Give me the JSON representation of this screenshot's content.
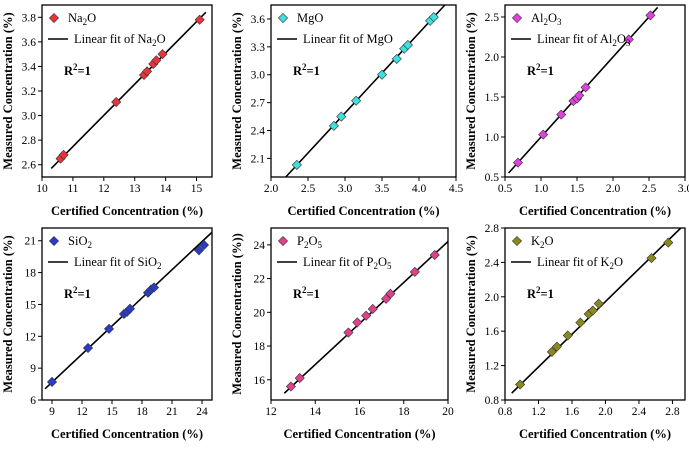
{
  "figure": {
    "xlabel": "Certified Concentration (%)",
    "ylabel": "Measured Concentration (%)"
  },
  "chart_data": [
    {
      "type": "scatter",
      "oxide": "Na2O",
      "legend_marker": "Na2O",
      "legend_fit": "Linear fit of Na2O",
      "r2": "R2=1",
      "color": "#e8333a",
      "xlabel": "Certified Concentration (%)",
      "ylabel": "Measured Concentration (%)",
      "xlim": [
        10,
        15.5
      ],
      "ylim": [
        2.5,
        3.9
      ],
      "xticks": [
        10,
        11,
        12,
        13,
        14,
        15
      ],
      "xtick_labels": [
        "10",
        "11",
        "12",
        "13",
        "14",
        "15"
      ],
      "yticks": [
        2.6,
        2.8,
        3.0,
        3.2,
        3.4,
        3.6,
        3.8
      ],
      "ytick_labels": [
        "2.6",
        "2.8",
        "3.0",
        "3.2",
        "3.4",
        "3.6",
        "3.8"
      ],
      "points": [
        [
          10.6,
          2.65
        ],
        [
          10.7,
          2.68
        ],
        [
          12.4,
          3.11
        ],
        [
          13.3,
          3.33
        ],
        [
          13.4,
          3.36
        ],
        [
          13.6,
          3.42
        ],
        [
          13.7,
          3.45
        ],
        [
          13.9,
          3.5
        ],
        [
          15.1,
          3.78
        ]
      ],
      "fit": [
        [
          10.3,
          2.57
        ],
        [
          15.3,
          3.84
        ]
      ]
    },
    {
      "type": "scatter",
      "oxide": "MgO",
      "legend_marker": "MgO",
      "legend_fit": "Linear fit of MgO",
      "r2": "R2=1",
      "color": "#3ee0e0",
      "xlabel": "Certified Concentration (%)",
      "ylabel": "Measured Concentration (%)",
      "xlim": [
        2.0,
        4.5
      ],
      "ylim": [
        1.9,
        3.75
      ],
      "xticks": [
        2.0,
        2.5,
        3.0,
        3.5,
        4.0,
        4.5
      ],
      "xtick_labels": [
        "2.0",
        "2.5",
        "3.0",
        "3.5",
        "4.0",
        "4.5"
      ],
      "yticks": [
        2.1,
        2.4,
        2.7,
        3.0,
        3.3,
        3.6
      ],
      "ytick_labels": [
        "2.1",
        "2.4",
        "2.7",
        "3.0",
        "3.3",
        "3.6"
      ],
      "points": [
        [
          2.35,
          2.03
        ],
        [
          2.85,
          2.45
        ],
        [
          2.95,
          2.55
        ],
        [
          3.15,
          2.72
        ],
        [
          3.5,
          3.0
        ],
        [
          3.7,
          3.17
        ],
        [
          3.8,
          3.28
        ],
        [
          3.85,
          3.32
        ],
        [
          4.15,
          3.58
        ],
        [
          4.2,
          3.62
        ]
      ],
      "fit": [
        [
          2.2,
          1.9
        ],
        [
          4.35,
          3.75
        ]
      ]
    },
    {
      "type": "scatter",
      "oxide": "Al2O3",
      "legend_marker": "Al2O3",
      "legend_fit": "Linear fit of Al2O3",
      "r2": "R2=1",
      "color": "#e040e0",
      "xlabel": "Certified Concentration (%)",
      "ylabel": "Measured Concentration (%)",
      "xlim": [
        0.5,
        3.0
      ],
      "ylim": [
        0.5,
        2.65
      ],
      "xticks": [
        0.5,
        1.0,
        1.5,
        2.0,
        2.5,
        3.0
      ],
      "xtick_labels": [
        "0.5",
        "1.0",
        "1.5",
        "2.0",
        "2.5",
        "3.0"
      ],
      "yticks": [
        0.5,
        1.0,
        1.5,
        2.0,
        2.5
      ],
      "ytick_labels": [
        "0.5",
        "1.0",
        "1.5",
        "2.0",
        "2.5"
      ],
      "points": [
        [
          0.68,
          0.68
        ],
        [
          1.03,
          1.03
        ],
        [
          1.28,
          1.28
        ],
        [
          1.45,
          1.45
        ],
        [
          1.5,
          1.48
        ],
        [
          1.53,
          1.52
        ],
        [
          1.62,
          1.62
        ],
        [
          2.22,
          2.22
        ],
        [
          2.52,
          2.52
        ]
      ],
      "fit": [
        [
          0.55,
          0.55
        ],
        [
          2.62,
          2.62
        ]
      ]
    },
    {
      "type": "scatter",
      "oxide": "SiO2",
      "legend_marker": "SiO2",
      "legend_fit": "Linear fit of SiO2",
      "r2": "R2=1",
      "color": "#2a3bc8",
      "xlabel": "Certified Concentration (%)",
      "ylabel": "Measured Concentration (%)",
      "xlim": [
        8,
        25
      ],
      "ylim": [
        6,
        22.2
      ],
      "xticks": [
        9,
        12,
        15,
        18,
        21,
        24
      ],
      "xtick_labels": [
        "9",
        "12",
        "15",
        "18",
        "21",
        "24"
      ],
      "yticks": [
        6,
        9,
        12,
        15,
        18,
        21
      ],
      "ytick_labels": [
        "6",
        "9",
        "12",
        "15",
        "18",
        "21"
      ],
      "points": [
        [
          9.0,
          7.7
        ],
        [
          12.6,
          10.9
        ],
        [
          14.7,
          12.7
        ],
        [
          16.2,
          14.1
        ],
        [
          16.5,
          14.3
        ],
        [
          16.8,
          14.6
        ],
        [
          18.6,
          16.1
        ],
        [
          18.9,
          16.4
        ],
        [
          19.2,
          16.6
        ],
        [
          23.7,
          20.1
        ],
        [
          24.2,
          20.6
        ]
      ],
      "fit": [
        [
          8.3,
          7.05
        ],
        [
          25.0,
          21.8
        ]
      ]
    },
    {
      "type": "scatter",
      "oxide": "P2O5",
      "legend_marker": "P2O5",
      "legend_fit": "Linear fit of P2O5",
      "r2": "R2=1",
      "color": "#e0408c",
      "xlabel": "Certified Concentration (%)",
      "ylabel": "Measured Concentration (%))",
      "xlim": [
        12,
        20
      ],
      "ylim": [
        14.8,
        25
      ],
      "xticks": [
        12,
        14,
        16,
        18,
        20
      ],
      "xtick_labels": [
        "12",
        "14",
        "16",
        "18",
        "20"
      ],
      "yticks": [
        16,
        18,
        20,
        22,
        24
      ],
      "ytick_labels": [
        "16",
        "18",
        "20",
        "22",
        "24"
      ],
      "points": [
        [
          12.9,
          15.6
        ],
        [
          13.3,
          16.1
        ],
        [
          15.5,
          18.8
        ],
        [
          15.9,
          19.4
        ],
        [
          16.3,
          19.8
        ],
        [
          16.6,
          20.2
        ],
        [
          17.2,
          20.8
        ],
        [
          17.4,
          21.1
        ],
        [
          18.5,
          22.4
        ],
        [
          19.4,
          23.4
        ]
      ],
      "fit": [
        [
          12.6,
          15.2
        ],
        [
          20.0,
          24.2
        ]
      ]
    },
    {
      "type": "scatter",
      "oxide": "K2O",
      "legend_marker": "K2O",
      "legend_fit": "Linear fit of K2O",
      "r2": "R2=1",
      "color": "#8a8a1a",
      "xlabel": "Certified Concentration (%)",
      "ylabel": "Measured Concentration (%)",
      "xlim": [
        0.8,
        2.95
      ],
      "ylim": [
        0.8,
        2.8
      ],
      "xticks": [
        0.8,
        1.2,
        1.6,
        2.0,
        2.4,
        2.8
      ],
      "xtick_labels": [
        "0.8",
        "1.2",
        "1.6",
        "2.0",
        "2.4",
        "2.8"
      ],
      "yticks": [
        0.8,
        1.2,
        1.6,
        2.0,
        2.4,
        2.8
      ],
      "ytick_labels": [
        "0.8",
        "1.2",
        "1.6",
        "2.0",
        "2.4",
        "2.8"
      ],
      "points": [
        [
          0.98,
          0.98
        ],
        [
          1.36,
          1.36
        ],
        [
          1.42,
          1.42
        ],
        [
          1.55,
          1.55
        ],
        [
          1.7,
          1.7
        ],
        [
          1.8,
          1.8
        ],
        [
          1.85,
          1.84
        ],
        [
          1.92,
          1.92
        ],
        [
          2.55,
          2.45
        ],
        [
          2.75,
          2.63
        ]
      ],
      "fit": [
        [
          0.88,
          0.88
        ],
        [
          2.9,
          2.8
        ]
      ]
    }
  ]
}
